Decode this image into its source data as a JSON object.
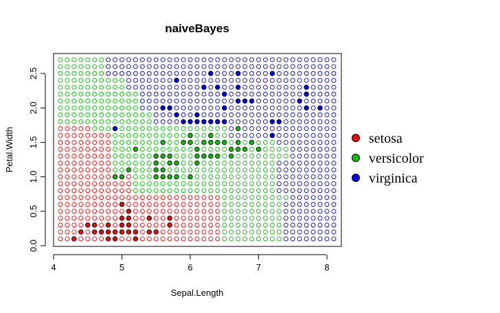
{
  "chart_data": {
    "type": "scatter",
    "title": "naiveBayes",
    "xlabel": "Sepal.Length",
    "ylabel": "Petal.Width",
    "xlim": [
      4.1,
      8.1
    ],
    "ylim": [
      0.1,
      2.7
    ],
    "x_ticks": [
      4,
      5,
      6,
      7,
      8
    ],
    "y_ticks": [
      0.0,
      0.5,
      1.0,
      1.5,
      2.0,
      2.5
    ],
    "x_tick_labels": [
      "4",
      "5",
      "6",
      "7",
      "8"
    ],
    "y_tick_labels": [
      "0.0",
      "0.5",
      "1.0",
      "1.5",
      "2.0",
      "2.5"
    ],
    "grid_step": 0.1,
    "legend_placement": "right",
    "series": [
      {
        "name": "setosa",
        "color": "#ff0000",
        "points": [
          [
            4.3,
            0.1
          ],
          [
            4.4,
            0.2
          ],
          [
            4.5,
            0.3
          ],
          [
            4.6,
            0.3
          ],
          [
            4.6,
            0.2
          ],
          [
            4.7,
            0.2
          ],
          [
            4.8,
            0.2
          ],
          [
            4.8,
            0.3
          ],
          [
            4.8,
            0.1
          ],
          [
            4.9,
            0.2
          ],
          [
            4.9,
            0.1
          ],
          [
            5.0,
            0.2
          ],
          [
            5.0,
            0.3
          ],
          [
            5.0,
            0.4
          ],
          [
            5.0,
            0.6
          ],
          [
            5.1,
            0.2
          ],
          [
            5.1,
            0.3
          ],
          [
            5.1,
            0.4
          ],
          [
            5.1,
            0.5
          ],
          [
            5.2,
            0.1
          ],
          [
            5.2,
            0.2
          ],
          [
            5.4,
            0.2
          ],
          [
            5.4,
            0.4
          ],
          [
            5.5,
            0.2
          ],
          [
            5.7,
            0.3
          ],
          [
            5.7,
            0.4
          ]
        ]
      },
      {
        "name": "versicolor",
        "color": "#00c000",
        "points": [
          [
            4.9,
            1.0
          ],
          [
            5.0,
            1.0
          ],
          [
            5.1,
            1.1
          ],
          [
            5.2,
            1.4
          ],
          [
            5.5,
            1.0
          ],
          [
            5.5,
            1.1
          ],
          [
            5.5,
            1.2
          ],
          [
            5.5,
            1.3
          ],
          [
            5.6,
            1.0
          ],
          [
            5.6,
            1.1
          ],
          [
            5.6,
            1.3
          ],
          [
            5.6,
            1.5
          ],
          [
            5.7,
            1.0
          ],
          [
            5.7,
            1.2
          ],
          [
            5.7,
            1.3
          ],
          [
            5.8,
            1.0
          ],
          [
            5.8,
            1.2
          ],
          [
            5.9,
            1.5
          ],
          [
            6.0,
            1.0
          ],
          [
            6.0,
            1.5
          ],
          [
            6.0,
            1.6
          ],
          [
            6.1,
            1.2
          ],
          [
            6.1,
            1.3
          ],
          [
            6.1,
            1.4
          ],
          [
            6.2,
            1.3
          ],
          [
            6.2,
            1.5
          ],
          [
            6.3,
            1.3
          ],
          [
            6.3,
            1.5
          ],
          [
            6.3,
            1.6
          ],
          [
            6.4,
            1.3
          ],
          [
            6.4,
            1.5
          ],
          [
            6.5,
            1.5
          ],
          [
            6.6,
            1.3
          ],
          [
            6.6,
            1.4
          ],
          [
            6.7,
            1.4
          ],
          [
            6.7,
            1.5
          ],
          [
            6.7,
            1.7
          ],
          [
            6.8,
            1.4
          ],
          [
            6.9,
            1.5
          ],
          [
            7.0,
            1.4
          ]
        ]
      },
      {
        "name": "virginica",
        "color": "#0000ff",
        "points": [
          [
            4.9,
            1.7
          ],
          [
            5.6,
            2.0
          ],
          [
            5.7,
            2.0
          ],
          [
            5.8,
            1.9
          ],
          [
            5.8,
            2.4
          ],
          [
            5.9,
            1.8
          ],
          [
            6.0,
            1.8
          ],
          [
            6.1,
            1.8
          ],
          [
            6.1,
            1.9
          ],
          [
            6.2,
            1.8
          ],
          [
            6.2,
            2.3
          ],
          [
            6.3,
            1.8
          ],
          [
            6.3,
            2.5
          ],
          [
            6.4,
            1.8
          ],
          [
            6.4,
            2.3
          ],
          [
            6.5,
            1.8
          ],
          [
            6.5,
            2.0
          ],
          [
            6.5,
            2.2
          ],
          [
            6.7,
            2.1
          ],
          [
            6.7,
            2.3
          ],
          [
            6.7,
            2.5
          ],
          [
            6.8,
            2.1
          ],
          [
            6.9,
            2.1
          ],
          [
            7.2,
            1.6
          ],
          [
            7.2,
            1.8
          ],
          [
            7.2,
            2.5
          ],
          [
            7.3,
            1.8
          ],
          [
            7.6,
            2.1
          ],
          [
            7.7,
            2.0
          ],
          [
            7.7,
            2.2
          ],
          [
            7.7,
            2.3
          ],
          [
            7.9,
            2.0
          ]
        ]
      }
    ]
  }
}
